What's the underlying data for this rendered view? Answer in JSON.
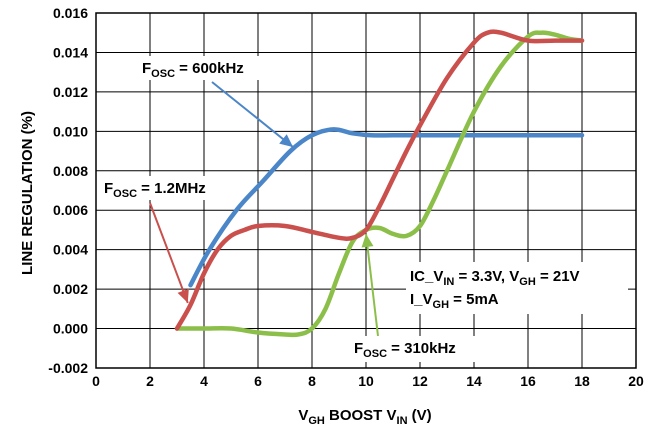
{
  "chart_data": {
    "type": "line",
    "title": "",
    "xlabel": {
      "main": "V",
      "sub1": "GH",
      "mid": " BOOST V",
      "sub2": "IN",
      "end": " (V)"
    },
    "ylabel": "LINE REGULATION (%)",
    "xlim": [
      0,
      20
    ],
    "ylim": [
      -0.002,
      0.016
    ],
    "x_ticks": [
      "0",
      "2",
      "4",
      "6",
      "8",
      "10",
      "12",
      "14",
      "16",
      "18",
      "20"
    ],
    "y_ticks": [
      "-0.002",
      "0.000",
      "0.002",
      "0.004",
      "0.006",
      "0.008",
      "0.010",
      "0.012",
      "0.014",
      "0.016"
    ],
    "grid": true,
    "legend": "none",
    "series": [
      {
        "name": "600kHz",
        "color": "#4a86c8",
        "x": [
          3.5,
          4.2,
          5.2,
          6.2,
          7.2,
          8.0,
          8.8,
          9.5,
          10.2,
          11,
          12,
          14,
          16,
          18
        ],
        "y": [
          0.0022,
          0.004,
          0.006,
          0.0075,
          0.009,
          0.0098,
          0.0101,
          0.0099,
          0.0098,
          0.0098,
          0.0098,
          0.0098,
          0.0098,
          0.0098
        ]
      },
      {
        "name": "1.2MHz",
        "color": "#c9504c",
        "x": [
          3.0,
          3.5,
          4.0,
          4.5,
          5.0,
          5.5,
          6.0,
          7.0,
          8.0,
          9.0,
          9.5,
          10.0,
          10.5,
          11.0,
          11.5,
          12.0,
          13.0,
          14.0,
          14.5,
          15.0,
          16.0,
          17.0,
          18.0
        ],
        "y": [
          0.0,
          0.0012,
          0.0028,
          0.004,
          0.0047,
          0.005,
          0.0052,
          0.0052,
          0.0049,
          0.0046,
          0.0046,
          0.005,
          0.0062,
          0.0076,
          0.009,
          0.0103,
          0.0127,
          0.0145,
          0.015,
          0.015,
          0.0146,
          0.0146,
          0.0146
        ]
      },
      {
        "name": "310kHz",
        "color": "#8cbf4a",
        "x": [
          3.0,
          4.0,
          5.0,
          6.0,
          7.0,
          7.5,
          8.0,
          8.5,
          9.0,
          9.5,
          10.0,
          10.5,
          11.0,
          11.5,
          12.0,
          12.5,
          13.0,
          14.0,
          15.0,
          16.0,
          16.5,
          17.0,
          17.5,
          18.0
        ],
        "y": [
          0.0,
          0.0,
          0.0,
          -0.0002,
          -0.0003,
          -0.0003,
          0.0,
          0.001,
          0.0028,
          0.0044,
          0.005,
          0.0051,
          0.0048,
          0.0047,
          0.0052,
          0.0065,
          0.008,
          0.011,
          0.0133,
          0.0148,
          0.015,
          0.0149,
          0.0147,
          0.0146
        ]
      }
    ],
    "annotations": [
      {
        "id": "f600",
        "main": "F",
        "sub": "OSC",
        "rest": " = 600kHz"
      },
      {
        "id": "f12",
        "main": "F",
        "sub": "OSC",
        "rest": " = 1.2MHz"
      },
      {
        "id": "f310",
        "main": "F",
        "sub": "OSC",
        "rest": " = 310kHz"
      },
      {
        "id": "cond1",
        "parts": [
          "IC_V",
          "IN",
          " = 3.3V, V",
          "GH",
          " = 21V"
        ]
      },
      {
        "id": "cond2",
        "text": "I_V",
        "sub": "GH",
        "rest": " = 5mA"
      }
    ]
  }
}
